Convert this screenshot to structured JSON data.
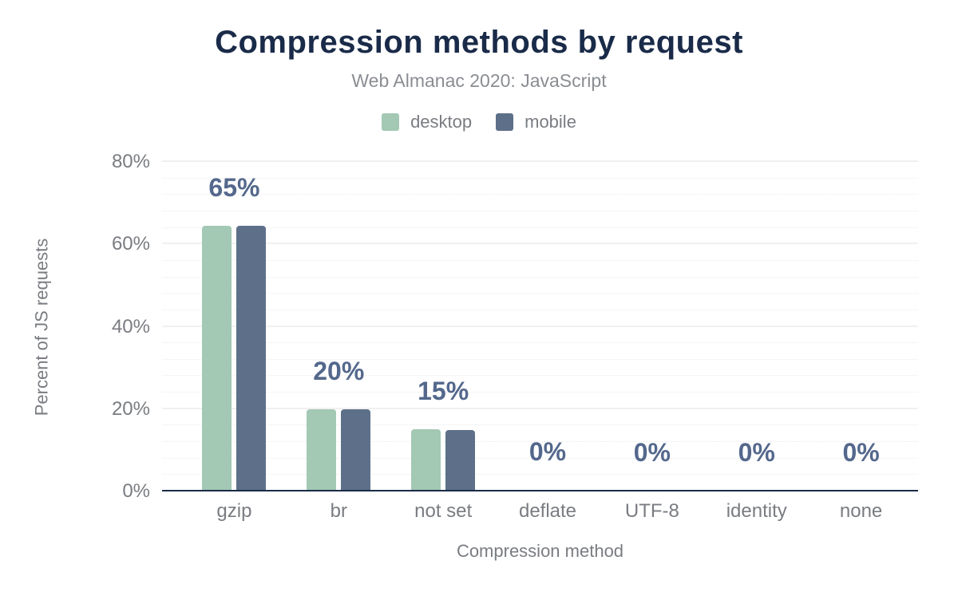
{
  "chart_data": {
    "type": "bar",
    "title": "Compression methods by request",
    "subtitle": "Web Almanac 2020: JavaScript",
    "categories": [
      "gzip",
      "br",
      "not set",
      "deflate",
      "UTF-8",
      "identity",
      "none"
    ],
    "series": [
      {
        "name": "desktop",
        "color": "#a3c8b4",
        "values": [
          64.5,
          19.9,
          15.1,
          0.3,
          0.2,
          0.1,
          0.1
        ]
      },
      {
        "name": "mobile",
        "color": "#5e7089",
        "values": [
          64.5,
          19.9,
          15.0,
          0.3,
          0.2,
          0.1,
          0.1
        ]
      }
    ],
    "bar_labels": [
      "65%",
      "20%",
      "15%",
      "0%",
      "0%",
      "0%",
      "0%"
    ],
    "xlabel": "Compression method",
    "ylabel": "Percent of JS requests",
    "ylim": [
      0,
      80
    ],
    "ytick_labels": [
      "0%",
      "20%",
      "40%",
      "60%",
      "80%"
    ],
    "grid": {
      "major_interval_pct": 20,
      "minor_interval_pct": 4,
      "orientation": "horizontal"
    },
    "legend_position": "top-center",
    "colors": {
      "title_text": "#1a2b49",
      "subtitle_text": "#8a8d92",
      "axis_text": "#797c81",
      "data_label_text": "#54688c",
      "axis_line": "#1a2b49",
      "grid_major": "#f0f0f0",
      "grid_minor": "#ebebeb",
      "background": "#ffffff"
    }
  }
}
